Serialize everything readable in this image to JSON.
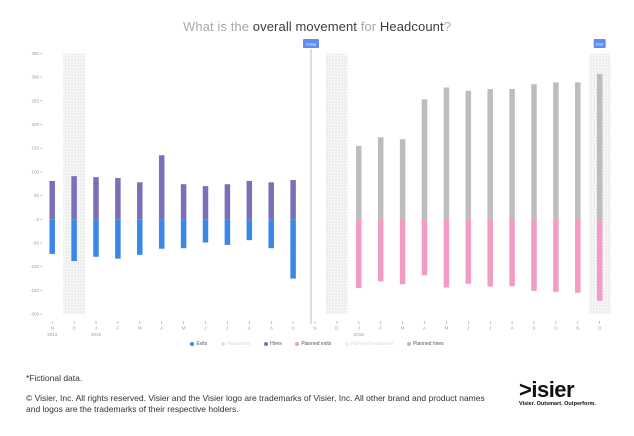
{
  "header": {
    "title_prefix": "What is the ",
    "title_strong1": "overall movement",
    "title_mid": " for ",
    "title_strong2": "Headcount",
    "title_suffix": "?"
  },
  "markers": {
    "today_label": "Today",
    "end_label": "End"
  },
  "legend": [
    {
      "label": "Exits",
      "color": "#3a87e8",
      "faint": false
    },
    {
      "label": "Headcount",
      "color": "#f7dccb",
      "faint": true
    },
    {
      "label": "Hires",
      "color": "#7a6fb8",
      "faint": false
    },
    {
      "label": "Planned exits",
      "color": "#f09cc6",
      "faint": false
    },
    {
      "label": "Planned headcount",
      "color": "#dff3f5",
      "faint": true
    },
    {
      "label": "Planned hires",
      "color": "#bdbdbd",
      "faint": false
    }
  ],
  "footer": {
    "footnote": "*Fictional data.",
    "copyright": "© Visier, Inc. All rights reserved. Visier and the Visier logo are trademarks of Visier, Inc. All other brand and product names and logos are the trademarks of their respective holders.",
    "logo_text": ">isier",
    "logo_tagline": "Visier. Outsmart. Outperform."
  },
  "chart_data": {
    "type": "bar",
    "title": "What is the overall movement for Headcount?",
    "xlabel": "",
    "ylabel": "",
    "ylim": [
      -200,
      350
    ],
    "yticks": [
      350,
      300,
      250,
      200,
      150,
      100,
      50,
      0,
      -50,
      -100,
      -150,
      -200
    ],
    "grid": false,
    "legend_position": "bottom",
    "categories": [
      "N",
      "D",
      "J",
      "F",
      "M",
      "A",
      "M",
      "J",
      "J",
      "A",
      "S",
      "O",
      "N",
      "D",
      "J",
      "F",
      "M",
      "A",
      "M",
      "J",
      "J",
      "A",
      "S",
      "O",
      "N",
      "D"
    ],
    "year_labels": [
      {
        "index": 0,
        "label": "2014"
      },
      {
        "index": 2,
        "label": "2015"
      },
      {
        "index": 14,
        "label": "2016"
      }
    ],
    "hatched_indices": [
      1,
      13,
      25
    ],
    "today_index": 12,
    "end_index": 25,
    "series": [
      {
        "name": "Hires",
        "color": "#7a6fb8",
        "values": [
          81,
          91,
          89,
          87,
          78,
          135,
          74,
          70,
          74,
          81,
          78,
          83,
          null,
          null,
          null,
          null,
          null,
          null,
          null,
          null,
          null,
          null,
          null,
          null,
          null,
          null
        ]
      },
      {
        "name": "Exits",
        "color": "#3a87e8",
        "values": [
          -73,
          -88,
          -79,
          -83,
          -75,
          -62,
          -61,
          -49,
          -54,
          -44,
          -61,
          -125,
          null,
          null,
          null,
          null,
          null,
          null,
          null,
          null,
          null,
          null,
          null,
          null,
          null,
          null
        ]
      },
      {
        "name": "Planned hires",
        "color": "#bdbdbd",
        "values": [
          null,
          null,
          null,
          null,
          null,
          null,
          null,
          null,
          null,
          null,
          null,
          null,
          null,
          null,
          155,
          173,
          169,
          253,
          278,
          271,
          275,
          275,
          285,
          289,
          289,
          307
        ]
      },
      {
        "name": "Planned exits",
        "color": "#f09cc6",
        "values": [
          null,
          null,
          null,
          null,
          null,
          null,
          null,
          null,
          null,
          null,
          null,
          null,
          null,
          null,
          -145,
          -131,
          -137,
          -118,
          -144,
          -136,
          -142,
          -141,
          -151,
          -153,
          -155,
          -172
        ]
      },
      {
        "name": "Headcount",
        "color": "#f7dccb",
        "values": []
      },
      {
        "name": "Planned headcount",
        "color": "#dff3f5",
        "values": []
      }
    ]
  }
}
